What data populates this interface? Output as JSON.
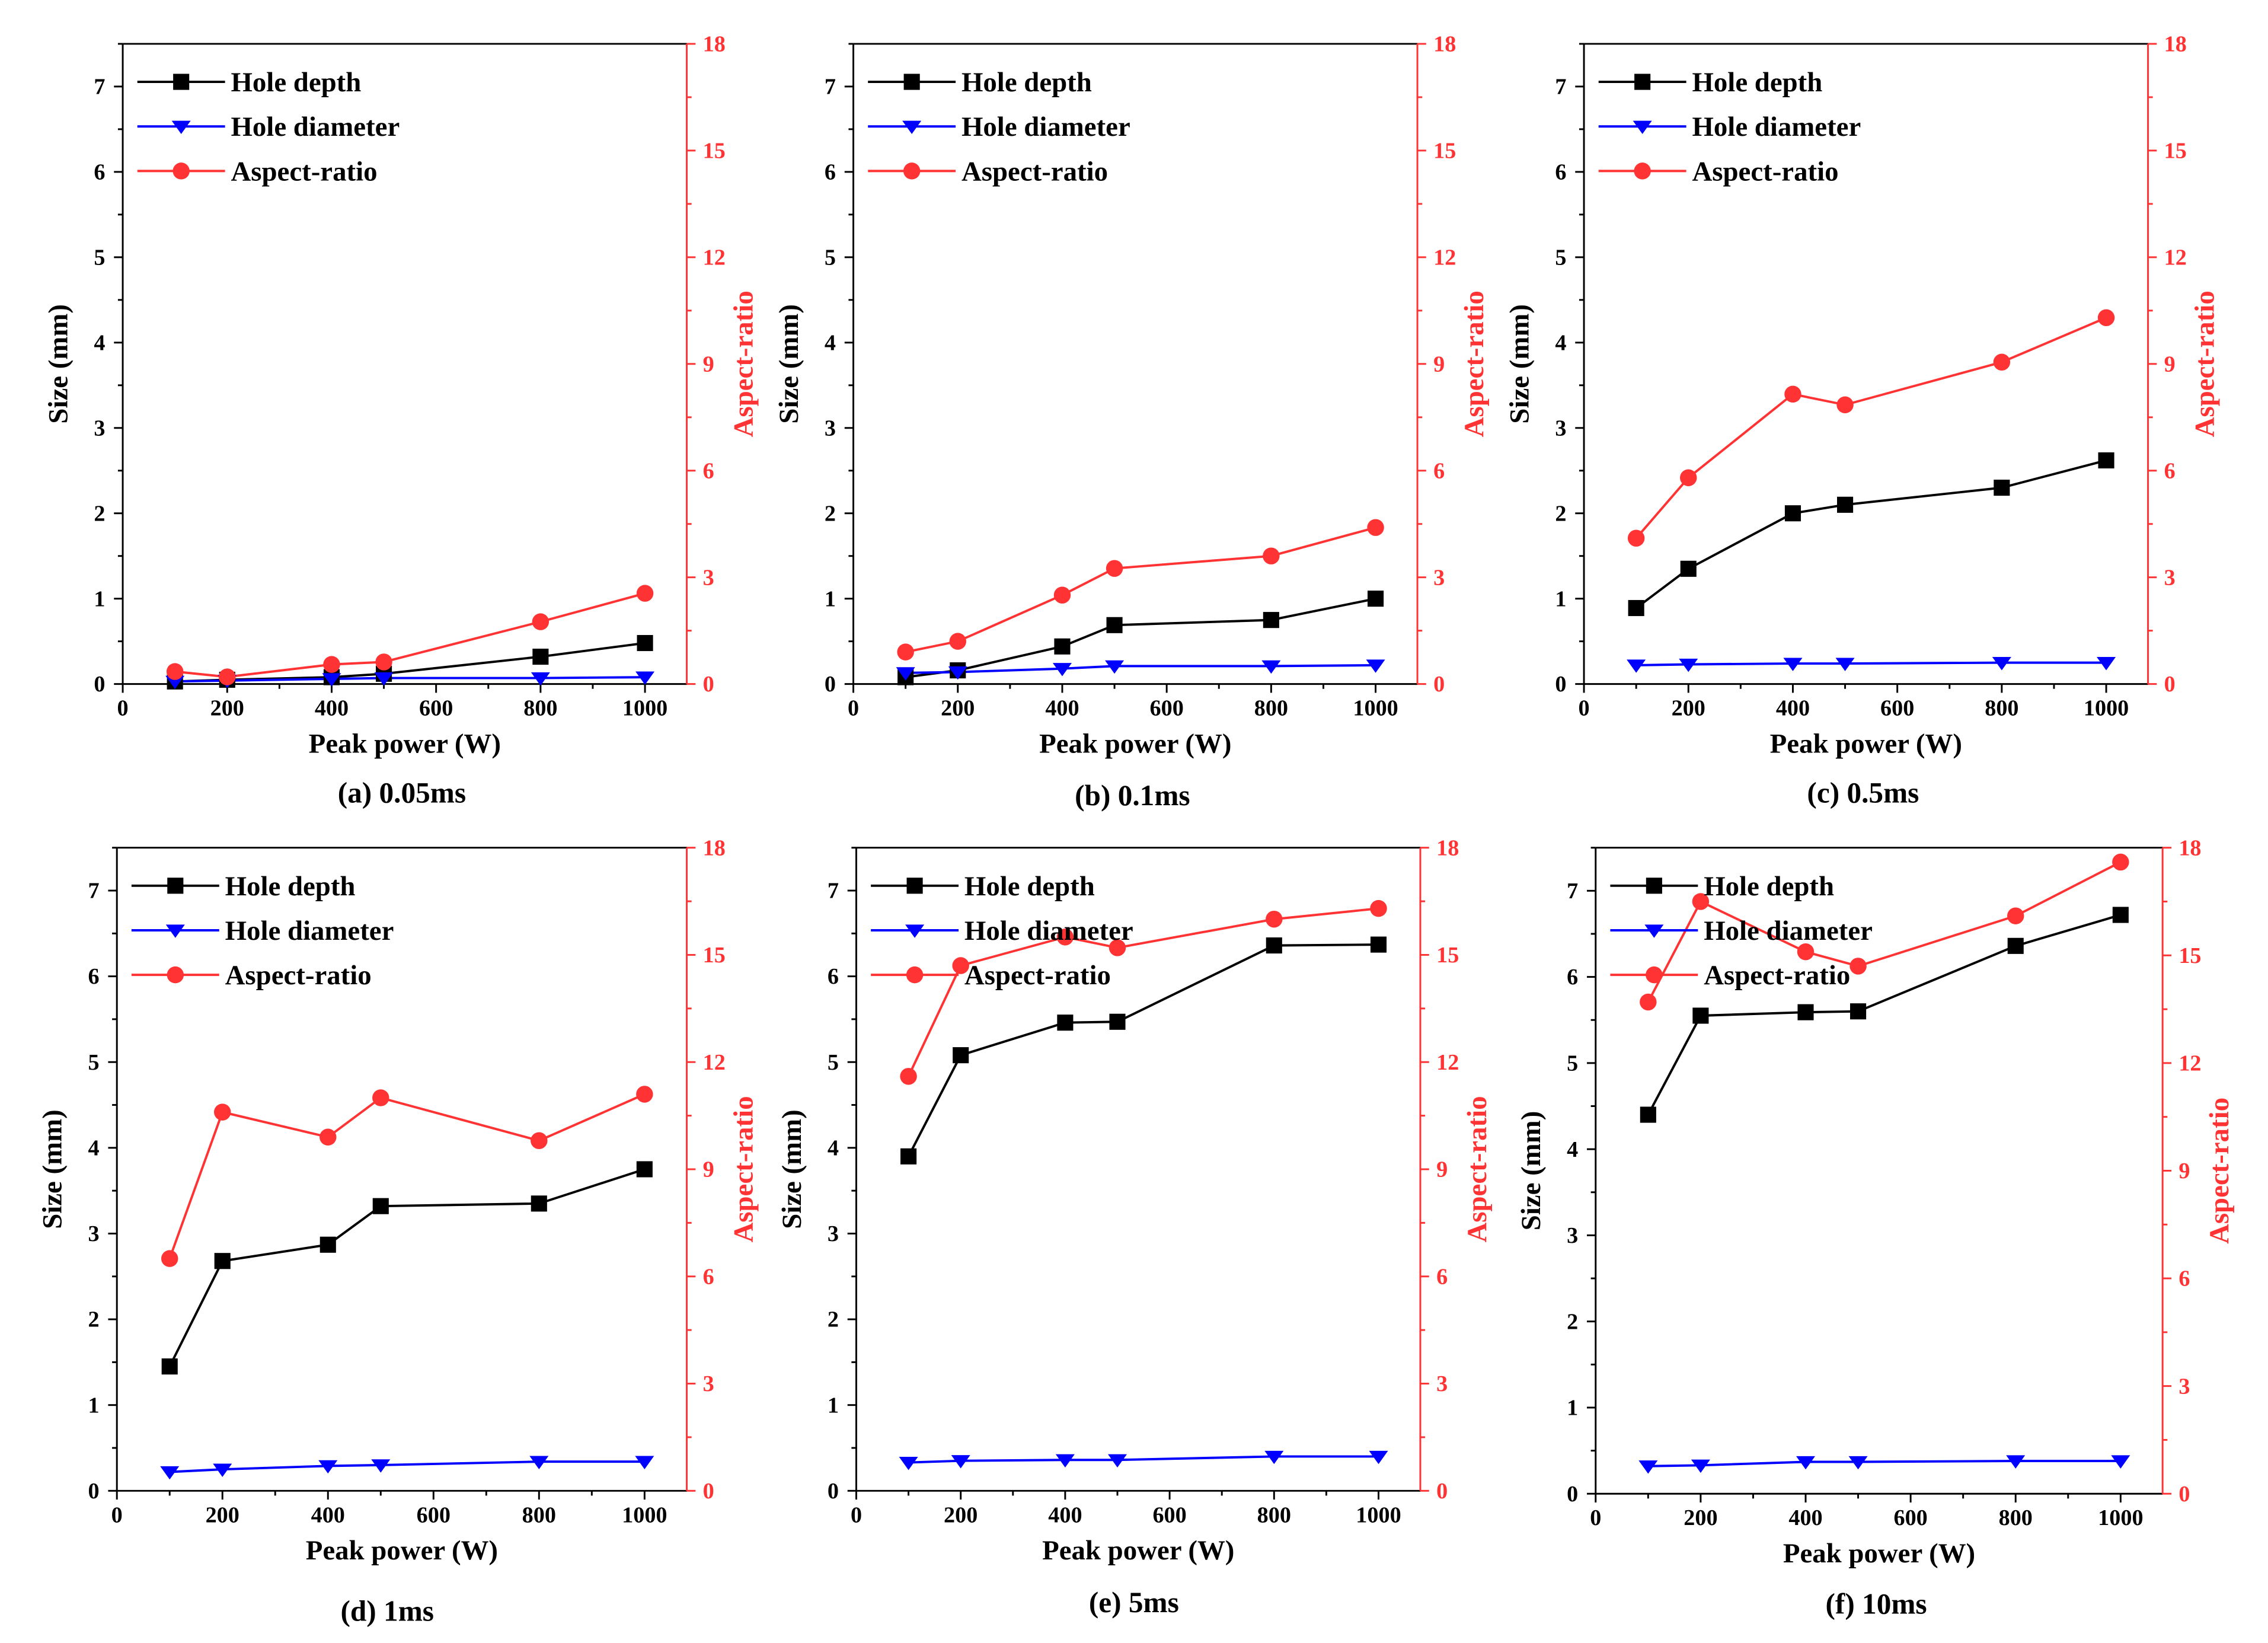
{
  "figure": {
    "colors": {
      "depth": "#000000",
      "diameter": "#0000ff",
      "ratio": "#ff3333",
      "axis": "#000000"
    },
    "legend": [
      "Hole depth",
      "Hole diameter",
      "Aspect-ratio"
    ],
    "xlabel": "Peak power (W)",
    "ylabel_left": "Size (mm)",
    "ylabel_right": "Aspect-ratio"
  },
  "chart_data": [
    {
      "type": "line",
      "caption": "(a) 0.05ms",
      "x": [
        100,
        200,
        400,
        500,
        800,
        1000
      ],
      "xlim": [
        0,
        1080
      ],
      "xticks": [
        "0",
        "200",
        "400",
        "600",
        "800",
        "1000"
      ],
      "ylim": [
        0,
        7.5
      ],
      "yticks": [
        "0",
        "1",
        "2",
        "3",
        "4",
        "5",
        "6",
        "7"
      ],
      "y2lim": [
        0,
        18
      ],
      "y2ticks": [
        "0",
        "3",
        "6",
        "9",
        "12",
        "15",
        "18"
      ],
      "series": [
        {
          "name": "Hole depth",
          "axis": "left",
          "marker": "square",
          "values": [
            0.03,
            0.05,
            0.08,
            0.12,
            0.32,
            0.48
          ]
        },
        {
          "name": "Hole diameter",
          "axis": "left",
          "marker": "triangle-down",
          "values": [
            0.03,
            0.04,
            0.06,
            0.07,
            0.07,
            0.08
          ]
        },
        {
          "name": "Aspect-ratio",
          "axis": "right",
          "marker": "circle",
          "values": [
            0.35,
            0.2,
            0.55,
            0.62,
            1.75,
            2.55
          ]
        }
      ]
    },
    {
      "type": "line",
      "caption": "(b) 0.1ms",
      "x": [
        100,
        200,
        400,
        500,
        800,
        1000
      ],
      "xlim": [
        0,
        1080
      ],
      "xticks": [
        "0",
        "200",
        "400",
        "600",
        "800",
        "1000"
      ],
      "ylim": [
        0,
        7.5
      ],
      "yticks": [
        "0",
        "1",
        "2",
        "3",
        "4",
        "5",
        "6",
        "7"
      ],
      "y2lim": [
        0,
        18
      ],
      "y2ticks": [
        "0",
        "3",
        "6",
        "9",
        "12",
        "15",
        "18"
      ],
      "series": [
        {
          "name": "Hole depth",
          "axis": "left",
          "marker": "square",
          "values": [
            0.08,
            0.16,
            0.44,
            0.69,
            0.75,
            1.0
          ]
        },
        {
          "name": "Hole diameter",
          "axis": "left",
          "marker": "triangle-down",
          "values": [
            0.13,
            0.14,
            0.18,
            0.21,
            0.21,
            0.22
          ]
        },
        {
          "name": "Aspect-ratio",
          "axis": "right",
          "marker": "circle",
          "values": [
            0.9,
            1.2,
            2.5,
            3.25,
            3.6,
            4.4
          ]
        }
      ]
    },
    {
      "type": "line",
      "caption": "(c) 0.5ms",
      "x": [
        100,
        200,
        400,
        500,
        800,
        1000
      ],
      "xlim": [
        0,
        1080
      ],
      "xticks": [
        "0",
        "200",
        "400",
        "600",
        "800",
        "1000"
      ],
      "ylim": [
        0,
        7.5
      ],
      "yticks": [
        "0",
        "1",
        "2",
        "3",
        "4",
        "5",
        "6",
        "7"
      ],
      "y2lim": [
        0,
        18
      ],
      "y2ticks": [
        "0",
        "3",
        "6",
        "9",
        "12",
        "15",
        "18"
      ],
      "series": [
        {
          "name": "Hole depth",
          "axis": "left",
          "marker": "square",
          "values": [
            0.89,
            1.35,
            2.0,
            2.1,
            2.3,
            2.62
          ]
        },
        {
          "name": "Hole diameter",
          "axis": "left",
          "marker": "triangle-down",
          "values": [
            0.22,
            0.23,
            0.24,
            0.24,
            0.25,
            0.25
          ]
        },
        {
          "name": "Aspect-ratio",
          "axis": "right",
          "marker": "circle",
          "values": [
            4.1,
            5.8,
            8.15,
            7.85,
            9.05,
            10.3
          ]
        }
      ]
    },
    {
      "type": "line",
      "caption": "(d) 1ms",
      "x": [
        100,
        200,
        400,
        500,
        800,
        1000
      ],
      "xlim": [
        0,
        1080
      ],
      "xticks": [
        "0",
        "200",
        "400",
        "600",
        "800",
        "1000"
      ],
      "ylim": [
        0,
        7.5
      ],
      "yticks": [
        "0",
        "1",
        "2",
        "3",
        "4",
        "5",
        "6",
        "7"
      ],
      "y2lim": [
        0,
        18
      ],
      "y2ticks": [
        "0",
        "3",
        "6",
        "9",
        "12",
        "15",
        "18"
      ],
      "series": [
        {
          "name": "Hole depth",
          "axis": "left",
          "marker": "square",
          "values": [
            1.45,
            2.68,
            2.87,
            3.32,
            3.35,
            3.75
          ]
        },
        {
          "name": "Hole diameter",
          "axis": "left",
          "marker": "triangle-down",
          "values": [
            0.22,
            0.25,
            0.29,
            0.3,
            0.34,
            0.34
          ]
        },
        {
          "name": "Aspect-ratio",
          "axis": "right",
          "marker": "circle",
          "values": [
            6.5,
            10.6,
            9.9,
            11.0,
            9.8,
            11.1
          ]
        }
      ]
    },
    {
      "type": "line",
      "caption": "(e) 5ms",
      "x": [
        100,
        200,
        400,
        500,
        800,
        1000
      ],
      "xlim": [
        0,
        1080
      ],
      "xticks": [
        "0",
        "200",
        "400",
        "600",
        "800",
        "1000"
      ],
      "ylim": [
        0,
        7.5
      ],
      "yticks": [
        "0",
        "1",
        "2",
        "3",
        "4",
        "5",
        "6",
        "7"
      ],
      "y2lim": [
        0,
        18
      ],
      "y2ticks": [
        "0",
        "3",
        "6",
        "9",
        "12",
        "15",
        "18"
      ],
      "series": [
        {
          "name": "Hole depth",
          "axis": "left",
          "marker": "square",
          "values": [
            3.9,
            5.08,
            5.46,
            5.47,
            6.36,
            6.37
          ]
        },
        {
          "name": "Hole diameter",
          "axis": "left",
          "marker": "triangle-down",
          "values": [
            0.33,
            0.35,
            0.36,
            0.36,
            0.4,
            0.4
          ]
        },
        {
          "name": "Aspect-ratio",
          "axis": "right",
          "marker": "circle",
          "values": [
            11.6,
            14.7,
            15.5,
            15.2,
            16.0,
            16.3
          ]
        }
      ]
    },
    {
      "type": "line",
      "caption": "(f) 10ms",
      "x": [
        100,
        200,
        400,
        500,
        800,
        1000
      ],
      "xlim": [
        0,
        1080
      ],
      "xticks": [
        "0",
        "200",
        "400",
        "600",
        "800",
        "1000"
      ],
      "ylim": [
        0,
        7.5
      ],
      "yticks": [
        "0",
        "1",
        "2",
        "3",
        "4",
        "5",
        "6",
        "7"
      ],
      "y2lim": [
        0,
        18
      ],
      "y2ticks": [
        "0",
        "3",
        "6",
        "9",
        "12",
        "15",
        "18"
      ],
      "series": [
        {
          "name": "Hole depth",
          "axis": "left",
          "marker": "square",
          "values": [
            4.4,
            5.55,
            5.59,
            5.6,
            6.36,
            6.72
          ]
        },
        {
          "name": "Hole diameter",
          "axis": "left",
          "marker": "triangle-down",
          "values": [
            0.32,
            0.33,
            0.37,
            0.37,
            0.38,
            0.38
          ]
        },
        {
          "name": "Aspect-ratio",
          "axis": "right",
          "marker": "circle",
          "values": [
            13.7,
            16.5,
            15.1,
            14.7,
            16.1,
            17.6
          ]
        }
      ]
    }
  ]
}
